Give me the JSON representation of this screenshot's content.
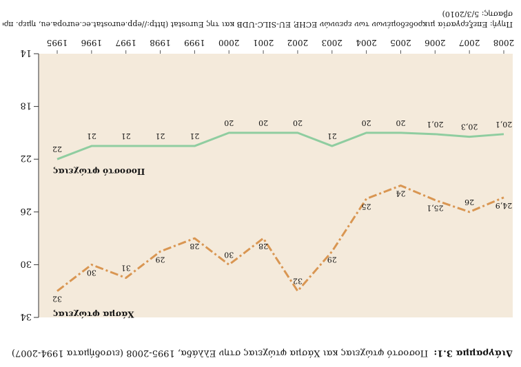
{
  "figure": {
    "caption_label": "Διάγραμμα 3.1:",
    "caption_text": "Ποσοστό φτώχειας και Χάσμα φτώχειας στην Ελλάδα, 1995-2008 (εισοδήματα 1994-2007)",
    "source_text": "Πηγή: Επεξεργασία μικροδεδομένων των ερευνών ECHP, EU-SILC-UDB και της Eurostat (http://epp.eurostat.ec.europa.eu, ημερ. πρό-",
    "source_text_2": "σβασης: 5/3/2010)"
  },
  "colors": {
    "background": "#f4eadb",
    "poverty_rate": "#8fcda0",
    "poverty_gap": "#d99652"
  },
  "chart_data": {
    "type": "line",
    "categories": [
      "1995",
      "1996",
      "1997",
      "1998",
      "1999",
      "2000",
      "2001",
      "2002",
      "2003",
      "2004",
      "2005",
      "2006",
      "2007",
      "2008"
    ],
    "y_ticks": [
      14,
      18,
      22,
      26,
      30,
      34
    ],
    "ylim": [
      14,
      34
    ],
    "inverted_y": true,
    "title": "",
    "xlabel": "",
    "ylabel": "",
    "series": [
      {
        "name": "Ποσοστό φτώχειας",
        "values": [
          22,
          21,
          21,
          21,
          21,
          20,
          20,
          20,
          21,
          20,
          20,
          20.1,
          20.3,
          20.1
        ],
        "labels": [
          "22",
          "21",
          "21",
          "21",
          "21",
          "20",
          "20",
          "20",
          "21",
          "20",
          "20",
          "20,1",
          "20,3",
          "20,1"
        ],
        "style": "solid"
      },
      {
        "name": "Χάσμα φτώχειας",
        "values": [
          32,
          30,
          31,
          29,
          28,
          30,
          28,
          32,
          29,
          25,
          24,
          25.1,
          26,
          24.9
        ],
        "labels": [
          "32",
          "30",
          "31",
          "29",
          "28",
          "30",
          "28",
          "32",
          "29",
          "25",
          "24",
          "25,1",
          "26",
          "24,9"
        ],
        "style": "dashdot"
      }
    ]
  }
}
